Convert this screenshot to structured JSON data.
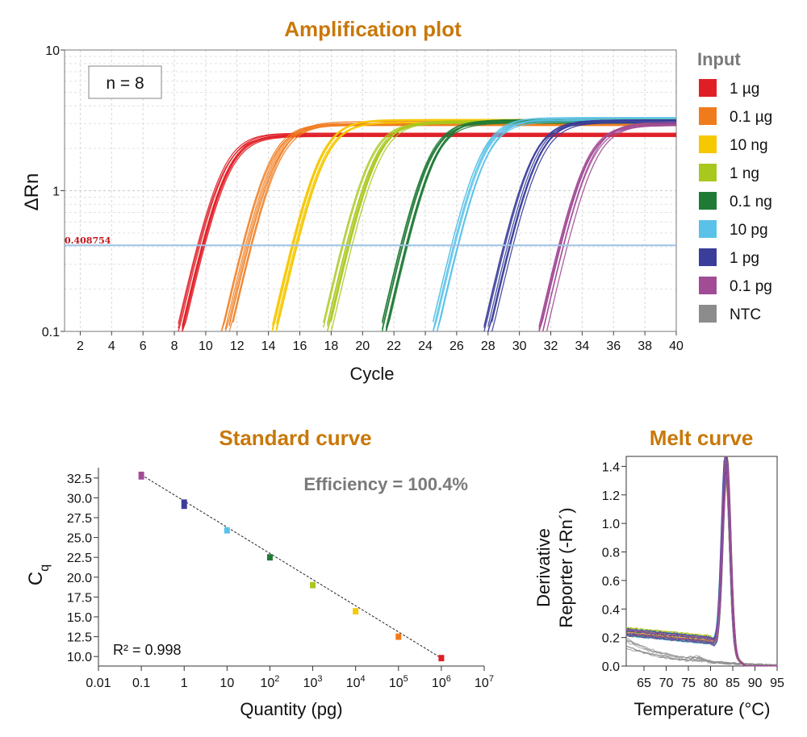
{
  "colors": {
    "title": "#c8780a",
    "series": [
      "#e01e26",
      "#f07b1d",
      "#f5c800",
      "#a8c81e",
      "#1f7a36",
      "#5ac2e8",
      "#3a3d9a",
      "#a24c96",
      "#8c8c8c"
    ],
    "threshold_line": "#9ec3e6",
    "threshold_text": "#c0161e"
  },
  "amplification": {
    "title": "Amplification plot",
    "n_label": "n = 8",
    "ylabel": "ΔRn",
    "xlabel": "Cycle",
    "threshold_label": "0.408754",
    "legend_title": "Input",
    "chart_data": {
      "type": "line",
      "y_scale": "log",
      "xlim": [
        1,
        40
      ],
      "ylim": [
        0.1,
        10
      ],
      "x_ticks": [
        2,
        4,
        6,
        8,
        10,
        12,
        14,
        16,
        18,
        20,
        22,
        24,
        26,
        28,
        30,
        32,
        34,
        36,
        38,
        40
      ],
      "y_ticks": [
        0.1,
        1,
        10
      ],
      "y_tick_labels": [
        "0.1",
        "1",
        "10"
      ],
      "threshold": 0.408754,
      "replicates": 8,
      "series": [
        {
          "name": "1 µg",
          "ct": 9.8,
          "plateau": 2.5
        },
        {
          "name": "0.1 µg",
          "ct": 12.6,
          "plateau": 3.0
        },
        {
          "name": "10 ng",
          "ct": 15.8,
          "plateau": 3.1
        },
        {
          "name": "1 ng",
          "ct": 19.0,
          "plateau": 3.1
        },
        {
          "name": "0.1 ng",
          "ct": 22.6,
          "plateau": 3.1
        },
        {
          "name": "10 pg",
          "ct": 26.0,
          "plateau": 3.2
        },
        {
          "name": "1 pg",
          "ct": 29.3,
          "plateau": 3.1
        },
        {
          "name": "0.1 pg",
          "ct": 32.8,
          "plateau": 3.0
        },
        {
          "name": "NTC",
          "ct": null,
          "plateau": null
        }
      ]
    }
  },
  "standard_curve": {
    "title": "Standard curve",
    "efficiency_label": "Efficiency = 100.4%",
    "r2_label": "R² = 0.998",
    "ylabel_main": "C",
    "ylabel_sub": "q",
    "xlabel": "Quantity (pg)",
    "chart_data": {
      "type": "scatter",
      "x_scale": "log",
      "xlim": [
        0.01,
        10000000
      ],
      "ylim": [
        8.8,
        33.8
      ],
      "x_ticks": [
        0.01,
        0.1,
        1,
        10,
        100,
        1000,
        10000,
        100000,
        1000000,
        10000000
      ],
      "x_tick_labels": [
        {
          "base": "0.01",
          "exp": ""
        },
        {
          "base": "0.1",
          "exp": ""
        },
        {
          "base": "1",
          "exp": ""
        },
        {
          "base": "10",
          "exp": ""
        },
        {
          "base": "10",
          "exp": "2"
        },
        {
          "base": "10",
          "exp": "3"
        },
        {
          "base": "10",
          "exp": "4"
        },
        {
          "base": "10",
          "exp": "5"
        },
        {
          "base": "10",
          "exp": "6"
        },
        {
          "base": "10",
          "exp": "7"
        }
      ],
      "y_ticks": [
        10.0,
        12.5,
        15.0,
        17.5,
        20.0,
        22.5,
        25.0,
        27.5,
        30.0,
        32.5
      ],
      "y_tick_labels": [
        "10.0",
        "12.5",
        "15.0",
        "17.5",
        "20.0",
        "22.5",
        "25.0",
        "27.5",
        "30.0",
        "32.5"
      ],
      "points": [
        {
          "x": 0.1,
          "y": 32.8,
          "spread": 0.5
        },
        {
          "x": 1,
          "y": 29.2,
          "spread": 0.6
        },
        {
          "x": 10,
          "y": 25.9,
          "spread": 0.4
        },
        {
          "x": 100,
          "y": 22.5,
          "spread": 0.4
        },
        {
          "x": 1000,
          "y": 19.0,
          "spread": 0.4
        },
        {
          "x": 10000,
          "y": 15.7,
          "spread": 0.4
        },
        {
          "x": 100000,
          "y": 12.5,
          "spread": 0.4
        },
        {
          "x": 1000000,
          "y": 9.8,
          "spread": 0.4
        }
      ],
      "fit": {
        "x": [
          0.1,
          1000000
        ],
        "y": [
          32.9,
          9.8
        ]
      }
    }
  },
  "melt_curve": {
    "title": "Melt curve",
    "ylabel_line1": "Derivative",
    "ylabel_line2": "Reporter (-Rn´)",
    "xlabel": "Temperature (°C)",
    "chart_data": {
      "type": "line",
      "xlim": [
        61,
        95
      ],
      "ylim": [
        0,
        1.47
      ],
      "x_ticks": [
        65,
        70,
        75,
        80,
        85,
        90,
        95
      ],
      "y_ticks": [
        0.0,
        0.2,
        0.4,
        0.6,
        0.8,
        1.0,
        1.2,
        1.4
      ],
      "y_tick_labels": [
        "0.0",
        "0.2",
        "0.4",
        "0.6",
        "0.8",
        "1.0",
        "1.2",
        "1.4"
      ],
      "peak_temperature": 83.5,
      "peak_height": 1.42,
      "baseline": 0.24,
      "ntc_baseline": 0.17
    }
  }
}
